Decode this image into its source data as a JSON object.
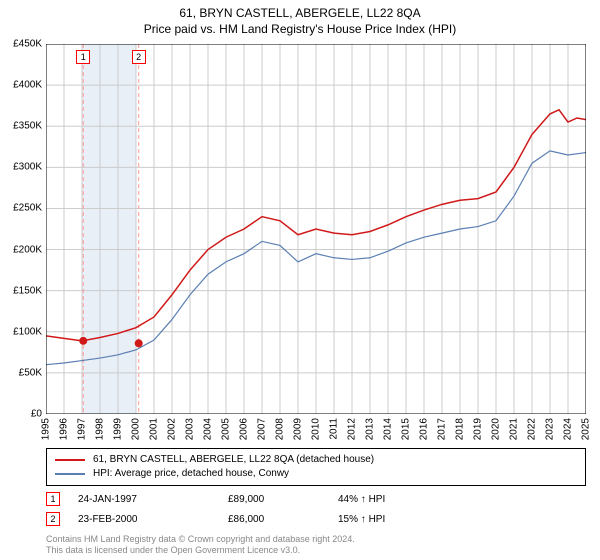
{
  "title_line1": "61, BRYN CASTELL, ABERGELE, LL22 8QA",
  "title_line2": "Price paid vs. HM Land Registry's House Price Index (HPI)",
  "chart": {
    "type": "line",
    "background_color": "#ffffff",
    "grid_color": "#cccccc",
    "highlight_band_color": "#e8eff7",
    "highlight_band": [
      1997,
      2000
    ],
    "axis_color": "#000000",
    "ylim": [
      0,
      450
    ],
    "ytick_step": 50,
    "y_prefix": "£",
    "y_suffix": "K",
    "xlim": [
      1995,
      2025
    ],
    "xtick_step": 1,
    "series": [
      {
        "name": "61, BRYN CASTELL, ABERGELE, LL22 8QA (detached house)",
        "color": "#d11919",
        "line_width": 1.5,
        "x": [
          1995,
          1996,
          1997,
          1998,
          1999,
          2000,
          2001,
          2002,
          2003,
          2004,
          2005,
          2006,
          2007,
          2008,
          2009,
          2010,
          2011,
          2012,
          2013,
          2014,
          2015,
          2016,
          2017,
          2018,
          2019,
          2020,
          2021,
          2022,
          2023,
          2023.5,
          2024,
          2024.5,
          2025
        ],
        "y": [
          95,
          92,
          89,
          93,
          98,
          105,
          118,
          145,
          175,
          200,
          215,
          225,
          240,
          235,
          218,
          225,
          220,
          218,
          222,
          230,
          240,
          248,
          255,
          260,
          262,
          270,
          300,
          340,
          365,
          370,
          355,
          360,
          358
        ]
      },
      {
        "name": "HPI: Average price, detached house, Conwy",
        "color": "#5b7fb3",
        "line_width": 1.2,
        "x": [
          1995,
          1996,
          1997,
          1998,
          1999,
          2000,
          2001,
          2002,
          2003,
          2004,
          2005,
          2006,
          2007,
          2008,
          2009,
          2010,
          2011,
          2012,
          2013,
          2014,
          2015,
          2016,
          2017,
          2018,
          2019,
          2020,
          2021,
          2022,
          2023,
          2024,
          2025
        ],
        "y": [
          60,
          62,
          65,
          68,
          72,
          78,
          90,
          115,
          145,
          170,
          185,
          195,
          210,
          205,
          185,
          195,
          190,
          188,
          190,
          198,
          208,
          215,
          220,
          225,
          228,
          235,
          265,
          305,
          320,
          315,
          318
        ]
      }
    ],
    "transactions": [
      {
        "idx": "1",
        "year": 1997.07,
        "price_k": 89
      },
      {
        "idx": "2",
        "year": 2000.15,
        "price_k": 86
      }
    ],
    "marker_dot_color": "#d11919",
    "marker_box_border": "#ff0000",
    "vline_color": "#ff9999",
    "vline_dash": "4,3"
  },
  "legend": {
    "items": [
      {
        "label": "61, BRYN CASTELL, ABERGELE, LL22 8QA (detached house)",
        "color": "#d11919"
      },
      {
        "label": "HPI: Average price, detached house, Conwy",
        "color": "#5b7fb3"
      }
    ]
  },
  "transactions_table": [
    {
      "idx": "1",
      "date": "24-JAN-1997",
      "price": "£89,000",
      "pct": "44% ↑ HPI"
    },
    {
      "idx": "2",
      "date": "23-FEB-2000",
      "price": "£86,000",
      "pct": "15% ↑ HPI"
    }
  ],
  "footer_line1": "Contains HM Land Registry data © Crown copyright and database right 2024.",
  "footer_line2": "This data is licensed under the Open Government Licence v3.0."
}
